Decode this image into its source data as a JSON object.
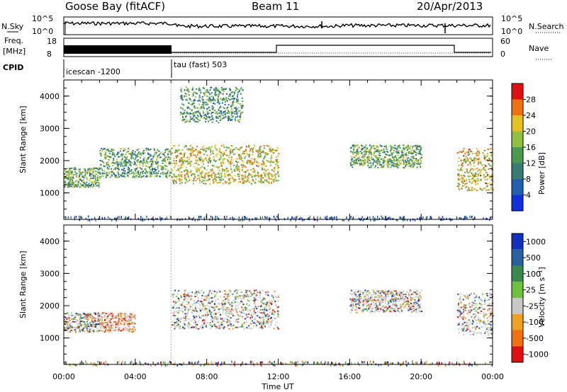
{
  "header": {
    "station": "Goose Bay (fitACF)",
    "beam": "Beam 11",
    "date": "20/Apr/2013"
  },
  "strip_labels": {
    "nsky": "N.Sky",
    "nsearch": "N.Search",
    "freq_line1": "Freq.",
    "freq_line2": "[MHz]",
    "nave": "Nave",
    "cpid": "CPID",
    "noise_ticks_left": [
      "10^5",
      "10^0"
    ],
    "noise_ticks_right": [
      "10^5",
      "10^0"
    ],
    "freq_ticks": [
      "18",
      "8"
    ],
    "nave_ticks": [
      "60",
      "0"
    ]
  },
  "cpid_segments": [
    {
      "label": "icescan -1200",
      "start_hour": 0
    },
    {
      "label": "tau (fast) 503",
      "start_hour": 6
    }
  ],
  "chart_data": [
    {
      "type": "heatmap",
      "panel": "power",
      "ylabel": "Slant Range [km]",
      "xlabel": "Time UT",
      "ylim": [
        180,
        4500
      ],
      "xlim_hours": [
        0,
        24
      ],
      "y_ticks": [
        1000,
        2000,
        3000,
        4000
      ],
      "x_tick_labels": [
        "00:00",
        "04:00",
        "08:00",
        "12:00",
        "16:00",
        "20:00",
        "00:00"
      ],
      "colorbar": {
        "label": "Power [dB]",
        "ticks": [
          "4",
          "8",
          "12",
          "16",
          "20",
          "24",
          "28"
        ],
        "colors": [
          "#1030e0",
          "#2060b0",
          "#3a7a70",
          "#4a9a50",
          "#90c040",
          "#e8c020",
          "#f07010",
          "#e01010"
        ]
      },
      "echo_regions": [
        {
          "t0": 0.0,
          "t1": 2.0,
          "r0": 1200,
          "r1": 1800,
          "level": 0.3
        },
        {
          "t0": 2.0,
          "t1": 6.0,
          "r0": 1500,
          "r1": 2400,
          "level": 0.25
        },
        {
          "t0": 6.0,
          "t1": 12.0,
          "r0": 1300,
          "r1": 2500,
          "level": 0.55
        },
        {
          "t0": 6.5,
          "t1": 10.0,
          "r0": 3200,
          "r1": 4300,
          "level": 0.2
        },
        {
          "t0": 16.0,
          "t1": 20.0,
          "r0": 1800,
          "r1": 2500,
          "level": 0.3
        },
        {
          "t0": 22.0,
          "t1": 24.0,
          "r0": 1100,
          "r1": 2400,
          "level": 0.6
        }
      ]
    },
    {
      "type": "heatmap",
      "panel": "velocity",
      "ylabel": "Slant Range [km]",
      "xlabel": "Time UT",
      "ylim": [
        180,
        4500
      ],
      "xlim_hours": [
        0,
        24
      ],
      "y_ticks": [
        1000,
        2000,
        3000,
        4000
      ],
      "x_tick_labels": [
        "00:00",
        "04:00",
        "08:00",
        "12:00",
        "16:00",
        "20:00",
        "00:00"
      ],
      "colorbar": {
        "label": "Velocity [m s⁻¹]",
        "ticks": [
          "1000",
          "500",
          "100",
          "25",
          "-25",
          "-100",
          "-500",
          "-1000"
        ],
        "colors": [
          "#1030c0",
          "#2c60a0",
          "#3a8a50",
          "#70c040",
          "#c8c8c8",
          "#f0a020",
          "#f07010",
          "#e01010"
        ]
      },
      "echo_regions": [
        {
          "t0": 0.0,
          "t1": 2.0,
          "r0": 1200,
          "r1": 1800,
          "level": 0.3
        },
        {
          "t0": 2.0,
          "t1": 4.0,
          "r0": 1200,
          "r1": 1800,
          "level": 0.7
        },
        {
          "t0": 6.0,
          "t1": 12.0,
          "r0": 1300,
          "r1": 2500,
          "level": 0.45
        },
        {
          "t0": 16.0,
          "t1": 20.0,
          "r0": 1800,
          "r1": 2500,
          "level": 0.45
        },
        {
          "t0": 22.0,
          "t1": 24.0,
          "r0": 1100,
          "r1": 2400,
          "level": 0.4
        }
      ]
    }
  ]
}
